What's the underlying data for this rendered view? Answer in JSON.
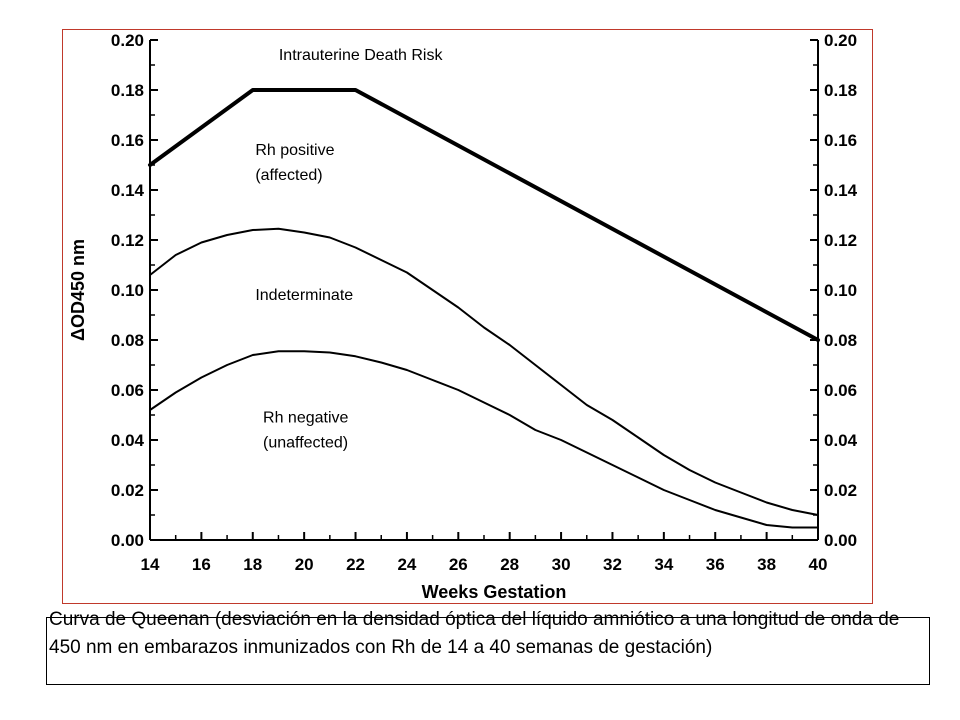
{
  "chart_data": {
    "type": "line",
    "xlabel": "Weeks Gestation",
    "ylabel": "ΔOD450 nm",
    "xlim": [
      14,
      40
    ],
    "ylim": [
      0,
      0.2
    ],
    "x_ticks": [
      "14",
      "16",
      "18",
      "20",
      "22",
      "24",
      "26",
      "28",
      "30",
      "32",
      "34",
      "36",
      "38",
      "40"
    ],
    "y_ticks": [
      "0.00",
      "0.02",
      "0.04",
      "0.06",
      "0.08",
      "0.10",
      "0.12",
      "0.14",
      "0.16",
      "0.18",
      "0.20"
    ],
    "secondary_y_axis": true,
    "grid": false,
    "series": [
      {
        "name": "Intrauterine Death Risk",
        "x": [
          14,
          18,
          22,
          40
        ],
        "y": [
          0.15,
          0.18,
          0.18,
          0.08
        ]
      },
      {
        "x": [
          14,
          15,
          16,
          17,
          18,
          19,
          20,
          21,
          22,
          23,
          24,
          25,
          26,
          27,
          28,
          29,
          30,
          31,
          32,
          33,
          34,
          35,
          36,
          37,
          38,
          39,
          40
        ],
        "y": [
          0.106,
          0.114,
          0.119,
          0.122,
          0.124,
          0.1245,
          0.123,
          0.121,
          0.117,
          0.112,
          0.107,
          0.1,
          0.093,
          0.085,
          0.078,
          0.07,
          0.062,
          0.054,
          0.048,
          0.041,
          0.034,
          0.028,
          0.023,
          0.019,
          0.015,
          0.012,
          0.01
        ]
      },
      {
        "x": [
          14,
          15,
          16,
          17,
          18,
          19,
          20,
          21,
          22,
          23,
          24,
          25,
          26,
          27,
          28,
          29,
          30,
          31,
          32,
          33,
          34,
          35,
          36,
          37,
          38,
          39,
          40
        ],
        "y": [
          0.052,
          0.059,
          0.065,
          0.07,
          0.074,
          0.0755,
          0.0755,
          0.075,
          0.0735,
          0.071,
          0.068,
          0.064,
          0.06,
          0.055,
          0.05,
          0.044,
          0.04,
          0.035,
          0.03,
          0.025,
          0.02,
          0.016,
          0.012,
          0.009,
          0.006,
          0.005,
          0.005
        ]
      }
    ],
    "annotations": [
      {
        "text": "Intrauterine Death Risk",
        "x": 22.2,
        "y": 0.192
      },
      {
        "text": "Rh positive",
        "x": 18.1,
        "y": 0.154
      },
      {
        "text": "(affected)",
        "x": 18.1,
        "y": 0.144
      },
      {
        "text": "Indeterminate",
        "x": 18.1,
        "y": 0.096
      },
      {
        "text": "Rh negative",
        "x": 18.4,
        "y": 0.047
      },
      {
        "text": "(unaffected)",
        "x": 18.4,
        "y": 0.037
      }
    ]
  },
  "caption": "Curva de Queenan (desviación en la densidad óptica del líquido amniótico a una longitud de onda de 450 nm en embarazos inmunizados con Rh de 14 a 40 semanas de gestación)"
}
